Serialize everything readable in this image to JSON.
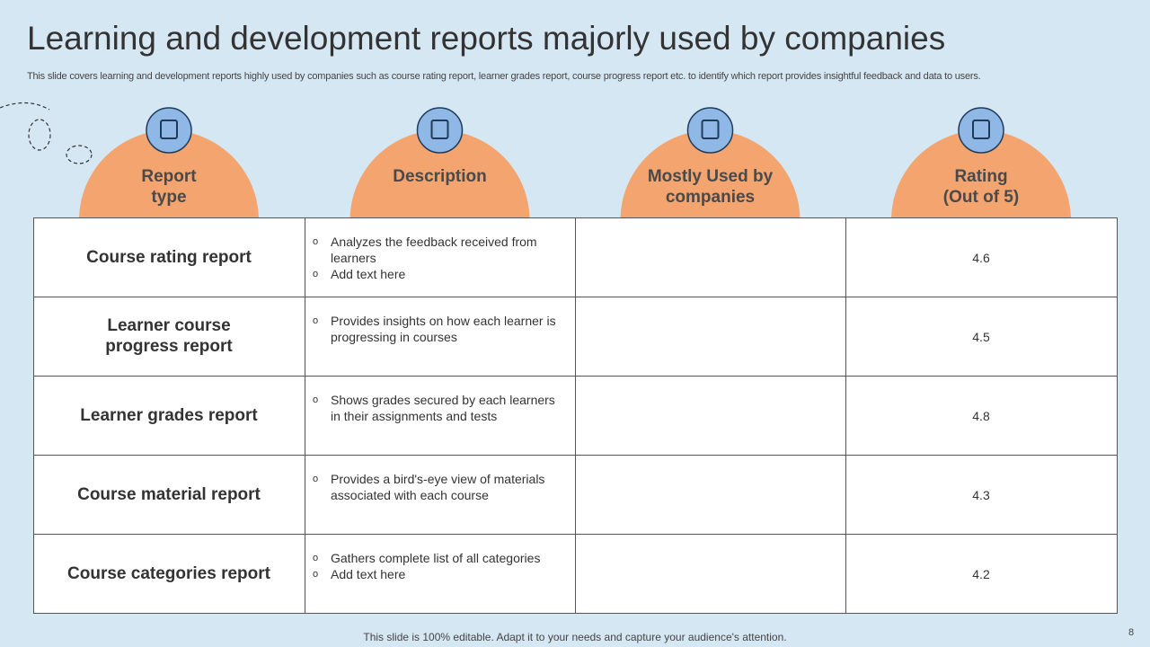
{
  "header": {
    "title": "Learning and development reports majorly used by companies",
    "subtitle": "This slide covers learning and development reports highly used by companies such as course rating report, learner grades report, course progress report etc. to identify which report provides insightful feedback and data to users."
  },
  "table": {
    "columns": [
      "Report\ntype",
      "Description",
      "Mostly Used by\ncompanies",
      "Rating\n(Out of 5)"
    ],
    "rows": [
      {
        "name": "Course rating report",
        "bullets": [
          "Analyzes the feedback received from learners",
          "Add text here"
        ],
        "rating": 4.6
      },
      {
        "name": "Learner course\nprogress report",
        "bullets": [
          "Provides insights on how each learner is progressing in  courses"
        ],
        "rating": 4.5
      },
      {
        "name": "Learner grades report",
        "bullets": [
          "Shows grades secured by each learners in their assignments and tests"
        ],
        "rating": 4.8
      },
      {
        "name": "Course material report",
        "bullets": [
          "Provides a bird's-eye view of materials associated with each course"
        ],
        "rating": 4.3
      },
      {
        "name": "Course categories report",
        "bullets": [
          "Gathers complete list of all  categories",
          "Add text here"
        ],
        "rating": 4.2
      }
    ]
  },
  "footer": {
    "note": "This slide is 100% editable. Adapt it to your needs and capture your audience's attention.",
    "page_number": 8
  }
}
